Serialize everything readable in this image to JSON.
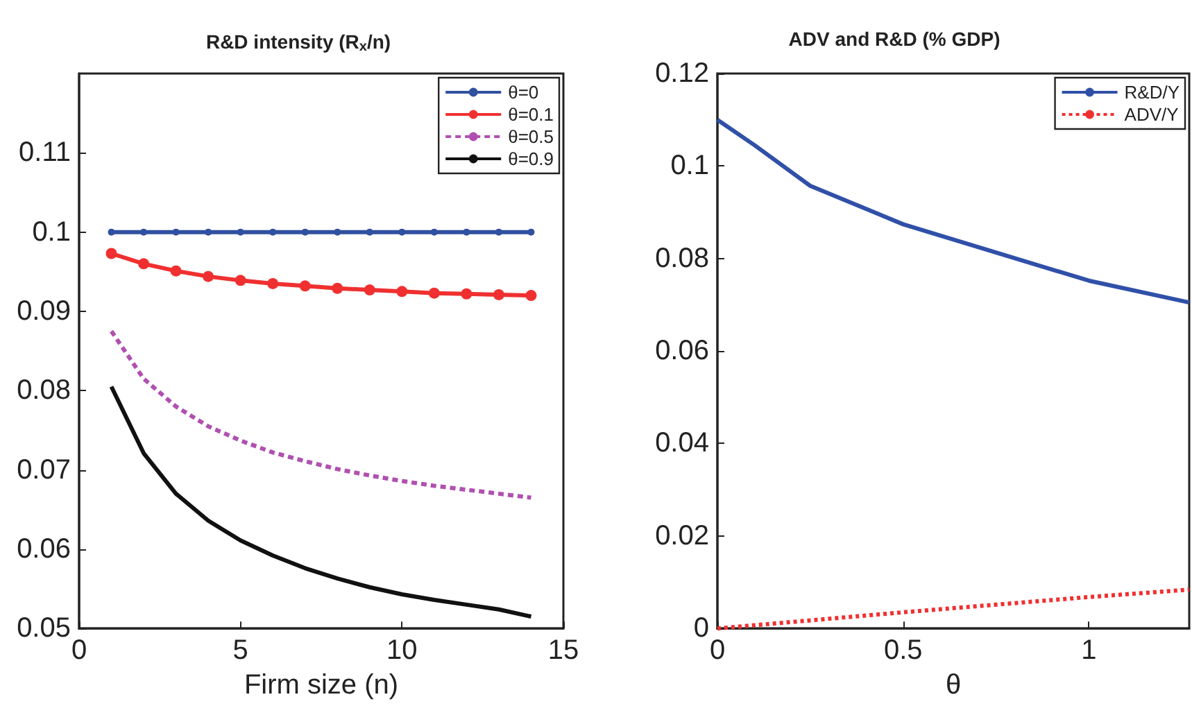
{
  "chart_data": [
    {
      "type": "line",
      "title": "R&D intensity (R$_{x}$/n)",
      "xlabel": "Firm size (n)",
      "x": [
        1,
        2,
        3,
        4,
        5,
        6,
        7,
        8,
        9,
        10,
        11,
        12,
        13,
        14
      ],
      "xlim": [
        0,
        15
      ],
      "xticks": [
        0,
        5,
        10,
        15
      ],
      "ylim": [
        0.05,
        0.12
      ],
      "yticks": [
        0.05,
        0.06,
        0.07,
        0.08,
        0.09,
        0.1,
        0.11
      ],
      "grid": false,
      "legend": "top right",
      "series": [
        {
          "name": "θ=0",
          "color": "#3050a0",
          "marker": "circle",
          "line_style": "solid",
          "values": [
            0.1,
            0.1,
            0.1,
            0.1,
            0.1,
            0.1,
            0.1,
            0.1,
            0.1,
            0.1,
            0.1,
            0.1,
            0.1,
            0.1
          ]
        },
        {
          "name": "θ=0.1",
          "color": "#f03030",
          "marker": "circle",
          "line_style": "solid",
          "values": [
            0.0973,
            0.096,
            0.0951,
            0.0944,
            0.0939,
            0.0935,
            0.0932,
            0.0929,
            0.0927,
            0.0925,
            0.0923,
            0.0922,
            0.0921,
            0.092
          ]
        },
        {
          "name": "θ=0.5",
          "color": "#b050b0",
          "marker": "none",
          "line_style": "dashed",
          "values": [
            0.0875,
            0.0815,
            0.078,
            0.0755,
            0.0737,
            0.0722,
            0.0711,
            0.0701,
            0.0693,
            0.0686,
            0.068,
            0.0675,
            0.067,
            0.0665
          ]
        },
        {
          "name": "θ=0.9",
          "color": "#111111",
          "marker": "none",
          "line_style": "solid",
          "values": [
            0.0805,
            0.0721,
            0.067,
            0.0636,
            0.0611,
            0.0592,
            0.0576,
            0.0563,
            0.0552,
            0.0543,
            0.0536,
            0.053,
            0.0524,
            0.0515
          ]
        }
      ]
    },
    {
      "type": "line",
      "title": "ADV and R&D (% GDP)",
      "xlabel": "θ",
      "xlim": [
        0,
        1.27
      ],
      "xticks": [
        0,
        0.5,
        1
      ],
      "ylim": [
        0,
        0.12
      ],
      "yticks": [
        0,
        0.02,
        0.04,
        0.06,
        0.08,
        0.1,
        0.12
      ],
      "grid": false,
      "legend": "top right",
      "series": [
        {
          "name": "R&D/Y",
          "color": "#3050a8",
          "marker": "none",
          "line_style": "solid",
          "x": [
            0,
            0.1,
            0.25,
            0.5,
            0.75,
            1,
            1.27
          ],
          "values": [
            0.11,
            0.1045,
            0.0957,
            0.0874,
            0.0813,
            0.0752,
            0.0705
          ]
        },
        {
          "name": "ADV/Y",
          "color": "#f03030",
          "marker": "none",
          "line_style": "dotted",
          "x": [
            0,
            0.5,
            1,
            1.27
          ],
          "values": [
            0,
            0.0035,
            0.0068,
            0.0084
          ]
        }
      ]
    }
  ]
}
